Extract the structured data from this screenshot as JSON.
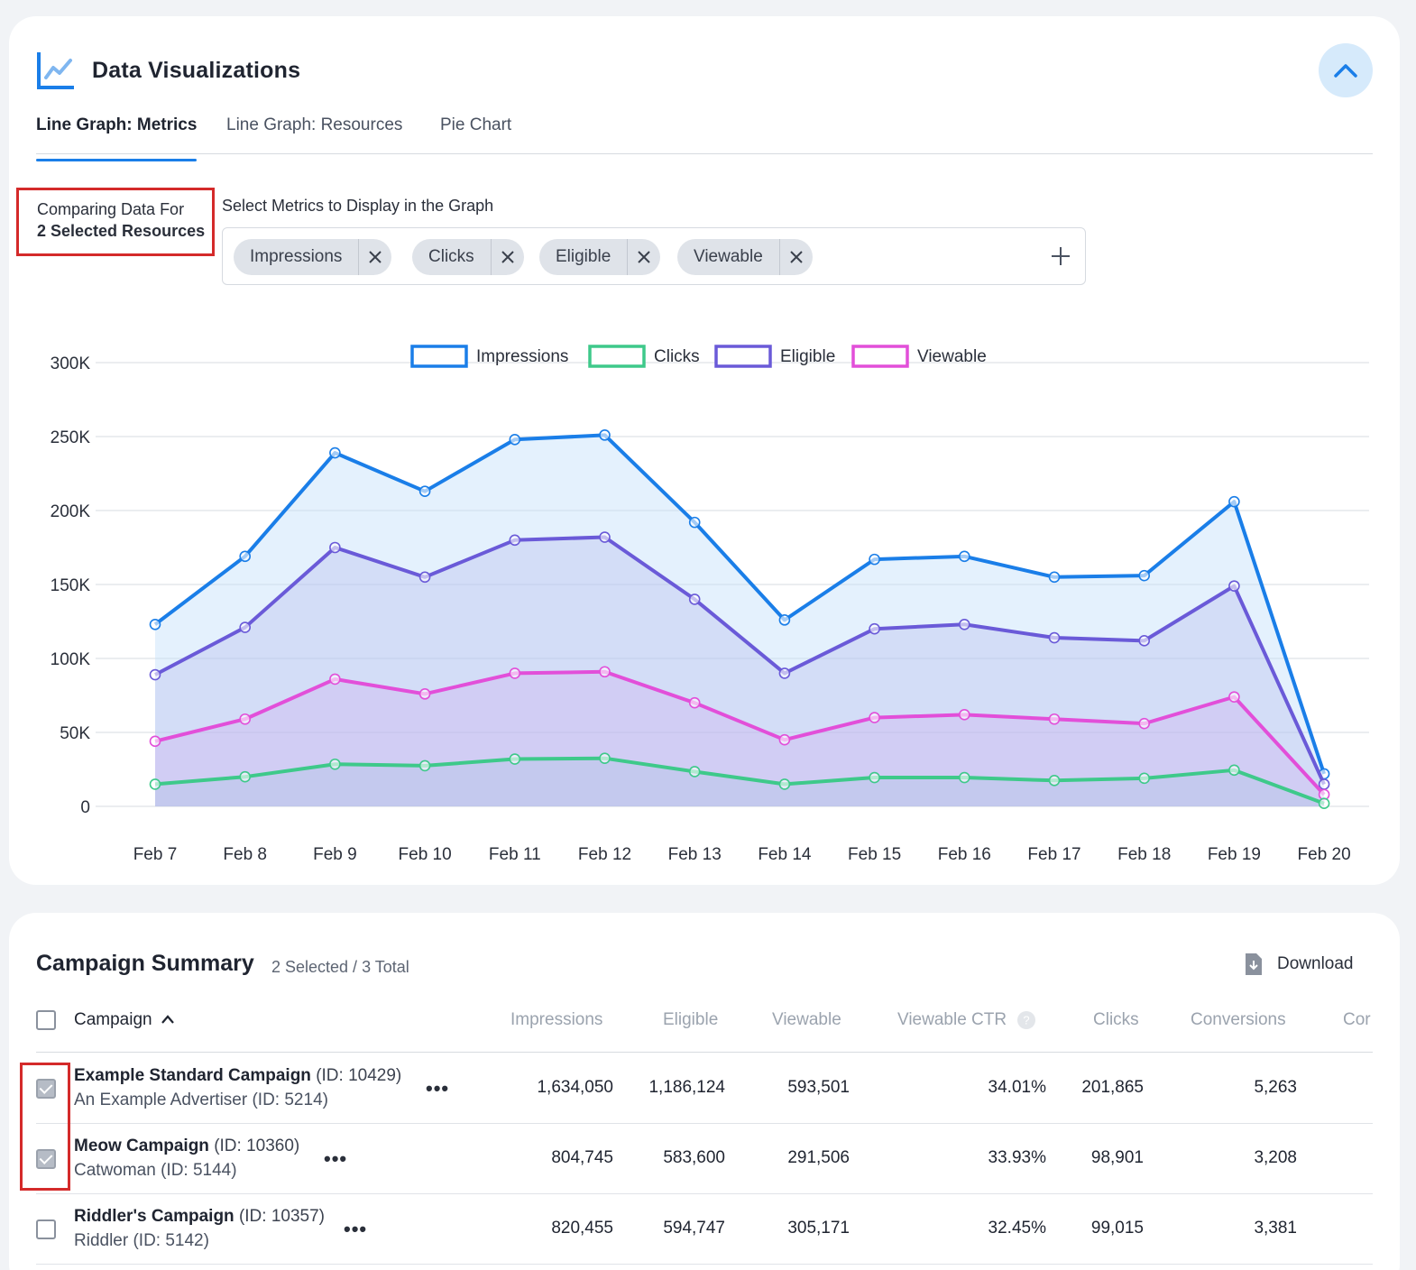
{
  "viz": {
    "title": "Data Visualizations",
    "tabs": [
      {
        "label": "Line Graph: Metrics",
        "active": true
      },
      {
        "label": "Line Graph: Resources",
        "active": false
      },
      {
        "label": "Pie Chart",
        "active": false
      }
    ],
    "comparing_line1": "Comparing Data For",
    "comparing_line2": "2 Selected Resources",
    "metrics_label": "Select Metrics to Display in the Graph",
    "chips": [
      "Impressions",
      "Clicks",
      "Eligible",
      "Viewable"
    ]
  },
  "colors": {
    "impressions": "#1a7ee8",
    "clicks": "#3ec98a",
    "eligible": "#6a5ad8",
    "viewable": "#e24fd9",
    "accent": "#1a7ee8"
  },
  "chart_data": {
    "type": "area",
    "categories": [
      "Feb 7",
      "Feb 8",
      "Feb 9",
      "Feb 10",
      "Feb 11",
      "Feb 12",
      "Feb 13",
      "Feb 14",
      "Feb 15",
      "Feb 16",
      "Feb 17",
      "Feb 18",
      "Feb 19",
      "Feb 20"
    ],
    "yticks": [
      0,
      50000,
      100000,
      150000,
      200000,
      250000,
      300000
    ],
    "ytick_labels": [
      "0",
      "50K",
      "100K",
      "150K",
      "200K",
      "250K",
      "300K"
    ],
    "ylim": [
      0,
      300000
    ],
    "legend_position": "top-center",
    "series": [
      {
        "name": "Impressions",
        "key": "impressions",
        "values": [
          123000,
          169000,
          239000,
          213000,
          248000,
          251000,
          192000,
          126000,
          167000,
          169000,
          155000,
          156000,
          206000,
          22000
        ]
      },
      {
        "name": "Clicks",
        "key": "clicks",
        "values": [
          15000,
          20000,
          28500,
          27500,
          32000,
          32500,
          23500,
          15000,
          19500,
          19500,
          17500,
          19000,
          24500,
          2000
        ]
      },
      {
        "name": "Eligible",
        "key": "eligible",
        "values": [
          89000,
          121000,
          175000,
          155000,
          180000,
          182000,
          140000,
          90000,
          120000,
          123000,
          114000,
          112000,
          149000,
          15000
        ]
      },
      {
        "name": "Viewable",
        "key": "viewable",
        "values": [
          44000,
          59000,
          86000,
          76000,
          90000,
          91000,
          70000,
          45000,
          60000,
          62000,
          59000,
          56000,
          74000,
          8000
        ]
      }
    ]
  },
  "summary": {
    "title": "Campaign Summary",
    "count": "2 Selected / 3 Total",
    "download_label": "Download",
    "columns": [
      "Campaign",
      "Impressions",
      "Eligible",
      "Viewable",
      "Viewable CTR",
      "Clicks",
      "Conversions",
      "Cor"
    ],
    "rows": [
      {
        "checked": true,
        "name": "Example Standard Campaign",
        "id": "(ID: 10429)",
        "advertiser": "An Example Advertiser (ID: 5214)",
        "impressions": "1,634,050",
        "eligible": "1,186,124",
        "viewable": "593,501",
        "viewable_ctr": "34.01%",
        "clicks": "201,865",
        "conversions": "5,263"
      },
      {
        "checked": true,
        "name": "Meow Campaign",
        "id": "(ID: 10360)",
        "advertiser": "Catwoman (ID: 5144)",
        "impressions": "804,745",
        "eligible": "583,600",
        "viewable": "291,506",
        "viewable_ctr": "33.93%",
        "clicks": "98,901",
        "conversions": "3,208"
      },
      {
        "checked": false,
        "name": "Riddler's Campaign",
        "id": "(ID: 10357)",
        "advertiser": "Riddler (ID: 5142)",
        "impressions": "820,455",
        "eligible": "594,747",
        "viewable": "305,171",
        "viewable_ctr": "32.45%",
        "clicks": "99,015",
        "conversions": "3,381"
      }
    ]
  }
}
